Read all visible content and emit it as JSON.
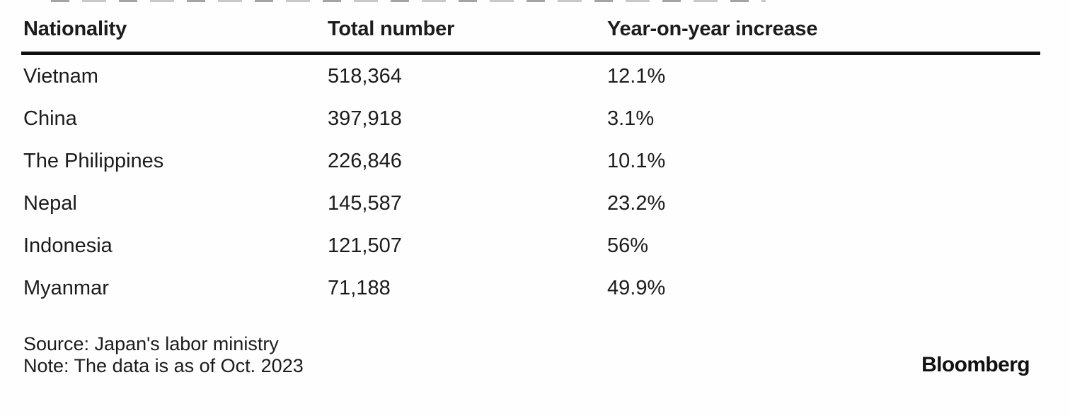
{
  "chart_data": {
    "type": "table",
    "columns": [
      "Nationality",
      "Total number",
      "Year-on-year increase"
    ],
    "rows": [
      [
        "Vietnam",
        "518,364",
        "12.1%"
      ],
      [
        "China",
        "397,918",
        "3.1%"
      ],
      [
        "The Philippines",
        "226,846",
        "10.1%"
      ],
      [
        "Nepal",
        "145,587",
        "23.2%"
      ],
      [
        "Indonesia",
        "121,507",
        "56%"
      ],
      [
        "Myanmar",
        "71,188",
        "49.9%"
      ]
    ],
    "numeric": {
      "total_number": [
        518364,
        397918,
        226846,
        145587,
        121507,
        71188
      ],
      "yoy_increase_pct": [
        12.1,
        3.1,
        10.1,
        23.2,
        56,
        49.9
      ]
    },
    "layout_hints": {
      "header_rule": "thick solid black under header",
      "row_dividers": "none",
      "grid": "off"
    }
  },
  "footer": {
    "source": "Source: Japan's labor ministry",
    "note": "Note: The data is as of Oct. 2023",
    "brand": "Bloomberg"
  },
  "colors": {
    "text": "#1c1c1c",
    "rule": "#0f0f0f",
    "background": "#fefefe"
  }
}
